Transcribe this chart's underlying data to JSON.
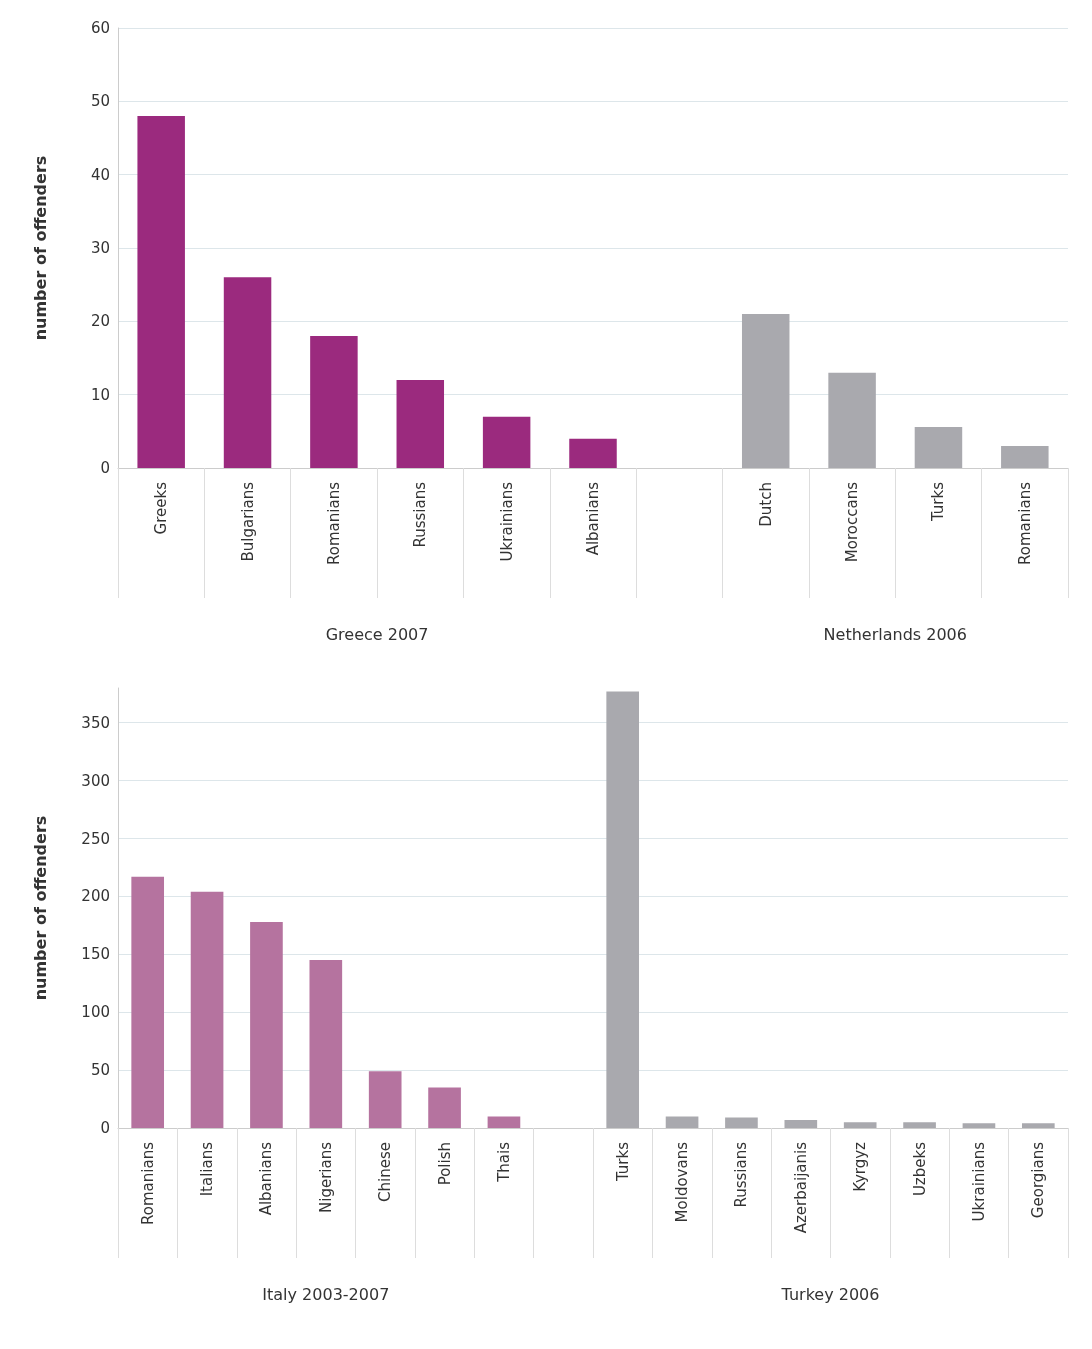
{
  "chart_data": [
    {
      "type": "bar",
      "ylabel": "number of offenders",
      "categories": [
        "Greeks",
        "Bulgarians",
        "Romanians",
        "Russians",
        "Ukrainians",
        "Albanians",
        null,
        "Dutch",
        "Moroccans",
        "Turks",
        "Romanians"
      ],
      "values": [
        48,
        26,
        18,
        12,
        7,
        4,
        null,
        21,
        13,
        5.6,
        3
      ],
      "colors": [
        "#9b2a7e",
        "#9b2a7e",
        "#9b2a7e",
        "#9b2a7e",
        "#9b2a7e",
        "#9b2a7e",
        "#9b2a7e",
        "#a9a9ae",
        "#a9a9ae",
        "#a9a9ae",
        "#a9a9ae"
      ],
      "ylim": [
        0,
        60
      ],
      "yticks": [
        0,
        10,
        20,
        30,
        40,
        50,
        60
      ],
      "grid": "y",
      "annotations": [
        "Greece 2007",
        "Netherlands 2006"
      ]
    },
    {
      "type": "bar",
      "ylabel": "number of offenders",
      "categories": [
        "Romanians",
        "Italians",
        "Albanians",
        "Nigerians",
        "Chinese",
        "Polish",
        "Thais",
        null,
        "Turks",
        "Moldovans",
        "Russians",
        "Azerbaijanis",
        "Kyrgyz",
        "Uzbeks",
        "Ukrainians",
        "Georgians"
      ],
      "values": [
        217,
        204,
        178,
        145,
        49,
        35,
        10,
        null,
        377,
        10,
        9,
        7,
        5,
        5,
        4,
        4
      ],
      "colors": [
        "#b5739f",
        "#b5739f",
        "#b5739f",
        "#b5739f",
        "#b5739f",
        "#b5739f",
        "#b5739f",
        "#b5739f",
        "#a9a9ae",
        "#a9a9ae",
        "#a9a9ae",
        "#a9a9ae",
        "#a9a9ae",
        "#a9a9ae",
        "#a9a9ae",
        "#a9a9ae"
      ],
      "ylim": [
        0,
        380
      ],
      "yticks": [
        0,
        50,
        100,
        150,
        200,
        250,
        300,
        350
      ],
      "grid": "y",
      "annotations": [
        "Italy 2003-2007",
        "Turkey 2006"
      ]
    }
  ]
}
